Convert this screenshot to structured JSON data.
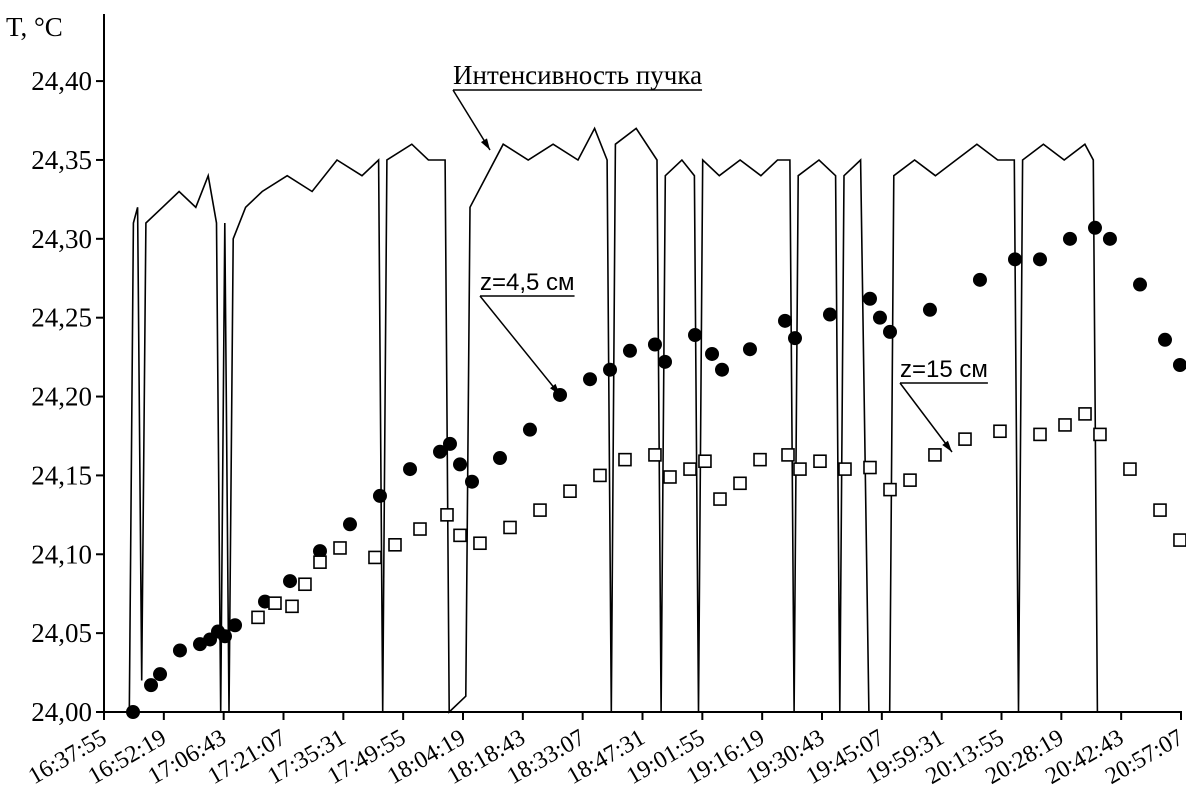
{
  "chart_data": {
    "type": "line_scatter",
    "y_label": "T, °C",
    "ylim": [
      24.0,
      24.44
    ],
    "yticks": [
      {
        "value": 24.0,
        "label": "24,00"
      },
      {
        "value": 24.05,
        "label": "24,05"
      },
      {
        "value": 24.1,
        "label": "24,10"
      },
      {
        "value": 24.15,
        "label": "24,15"
      },
      {
        "value": 24.2,
        "label": "24,20"
      },
      {
        "value": 24.25,
        "label": "24,25"
      },
      {
        "value": 24.3,
        "label": "24,30"
      },
      {
        "value": 24.35,
        "label": "24,35"
      },
      {
        "value": 24.4,
        "label": "24,40"
      }
    ],
    "xlim": [
      "16:37:55",
      "20:57:07"
    ],
    "xticks": [
      "16:37:55",
      "16:52:19",
      "17:06:43",
      "17:21:07",
      "17:35:31",
      "17:49:55",
      "18:04:19",
      "18:18:43",
      "18:33:07",
      "18:47:31",
      "19:01:55",
      "19:16:19",
      "19:30:43",
      "19:45:07",
      "19:59:31",
      "20:13:55",
      "20:28:19",
      "20:42:43",
      "20:57:07"
    ],
    "series": [
      {
        "name": "Интенсивность пучка",
        "color": "#000000",
        "style": "line",
        "x": [
          "16:44:00",
          "16:45:00",
          "16:46:00",
          "16:47:00",
          "16:48:00",
          "16:52:00",
          "16:56:00",
          "17:00:00",
          "17:03:00",
          "17:05:00",
          "17:06:00",
          "17:07:00",
          "17:08:00",
          "17:09:00",
          "17:12:00",
          "17:16:00",
          "17:22:00",
          "17:28:00",
          "17:34:00",
          "17:40:00",
          "17:44:00",
          "17:45:00",
          "17:46:00",
          "17:52:00",
          "17:56:00",
          "18:00:00",
          "18:01:00",
          "18:05:00",
          "18:06:00",
          "18:10:00",
          "18:14:00",
          "18:20:00",
          "18:26:00",
          "18:32:00",
          "18:36:00",
          "18:39:00",
          "18:40:00",
          "18:41:00",
          "18:46:00",
          "18:51:00",
          "18:52:00",
          "18:53:00",
          "18:57:00",
          "19:00:00",
          "19:01:00",
          "19:02:00",
          "19:06:00",
          "19:11:00",
          "19:16:00",
          "19:20:00",
          "19:23:00",
          "19:24:00",
          "19:25:00",
          "19:30:00",
          "19:34:00",
          "19:35:00",
          "19:36:00",
          "19:40:00",
          "19:42:00",
          "19:47:00",
          "19:48:00",
          "19:53:00",
          "19:58:00",
          "20:03:00",
          "20:08:00",
          "20:13:00",
          "20:17:00",
          "20:18:00",
          "20:19:00",
          "20:24:00",
          "20:29:00",
          "20:34:00",
          "20:36:00",
          "20:37:00"
        ],
        "values": [
          24.0,
          24.31,
          24.32,
          24.02,
          24.31,
          24.32,
          24.33,
          24.32,
          24.34,
          24.31,
          24.0,
          24.31,
          24.0,
          24.3,
          24.32,
          24.33,
          24.34,
          24.33,
          24.35,
          24.34,
          24.35,
          24.0,
          24.35,
          24.36,
          24.35,
          24.35,
          24.0,
          24.01,
          24.32,
          24.34,
          24.36,
          24.35,
          24.36,
          24.35,
          24.37,
          24.35,
          24.0,
          24.36,
          24.37,
          24.35,
          24.0,
          24.34,
          24.35,
          24.34,
          24.0,
          24.35,
          24.34,
          24.35,
          24.34,
          24.35,
          24.35,
          24.0,
          24.34,
          24.35,
          24.34,
          24.0,
          24.34,
          24.35,
          24.0,
          24.0,
          24.34,
          24.35,
          24.34,
          24.35,
          24.36,
          24.35,
          24.35,
          24.0,
          24.35,
          24.36,
          24.35,
          24.36,
          24.35,
          24.0
        ]
      },
      {
        "name": "z=4,5 см",
        "color": "#000000",
        "style": "circle",
        "x": [
          "16:44:54",
          "16:49:14",
          "16:51:24",
          "16:56:12",
          "17:01:01",
          "17:03:26",
          "17:05:21",
          "17:07:02",
          "17:09:27",
          "17:16:40",
          "17:22:41",
          "17:29:54",
          "17:37:07",
          "17:44:20",
          "17:51:34",
          "17:58:47",
          "18:01:11",
          "18:03:36",
          "18:06:29",
          "18:13:13",
          "18:20:26",
          "18:27:40",
          "18:34:53",
          "18:39:42",
          "18:44:30",
          "18:50:31",
          "18:52:56",
          "19:00:09",
          "19:04:15",
          "19:06:39",
          "19:13:23",
          "19:21:49",
          "19:24:13",
          "19:32:38",
          "19:42:16",
          "19:44:40",
          "19:47:05",
          "19:56:42",
          "20:08:44",
          "20:17:10",
          "20:23:11",
          "20:30:24",
          "20:36:25",
          "20:40:01",
          "20:47:15",
          "20:53:16",
          "20:56:52"
        ],
        "values": [
          24.0,
          24.017,
          24.024,
          24.039,
          24.043,
          24.046,
          24.051,
          24.048,
          24.055,
          24.07,
          24.083,
          24.102,
          24.119,
          24.137,
          24.154,
          24.165,
          24.17,
          24.157,
          24.146,
          24.161,
          24.179,
          24.201,
          24.211,
          24.217,
          24.229,
          24.233,
          24.222,
          24.239,
          24.227,
          24.217,
          24.23,
          24.248,
          24.237,
          24.252,
          24.262,
          24.25,
          24.241,
          24.255,
          24.274,
          24.287,
          24.287,
          24.3,
          24.307,
          24.3,
          24.271,
          24.236,
          24.22
        ]
      },
      {
        "name": "z=15 см",
        "color": "#000000",
        "style": "square",
        "x": [
          "17:14:59",
          "17:19:04",
          "17:23:10",
          "17:26:17",
          "17:29:54",
          "17:34:43",
          "17:43:08",
          "17:47:57",
          "17:53:58",
          "18:00:28",
          "18:03:36",
          "18:08:24",
          "18:15:38",
          "18:22:51",
          "18:30:04",
          "18:37:17",
          "18:43:18",
          "18:50:31",
          "18:54:08",
          "18:58:57",
          "19:02:33",
          "19:06:10",
          "19:10:59",
          "19:15:48",
          "19:22:32",
          "19:25:25",
          "19:30:14",
          "19:36:15",
          "19:42:16",
          "19:47:05",
          "19:51:54",
          "19:57:54",
          "20:05:08",
          "20:13:33",
          "20:23:11",
          "20:29:12",
          "20:34:01",
          "20:37:37",
          "20:44:50",
          "20:52:04",
          "20:56:52"
        ],
        "values": [
          24.06,
          24.069,
          24.067,
          24.081,
          24.095,
          24.104,
          24.098,
          24.106,
          24.116,
          24.125,
          24.112,
          24.107,
          24.117,
          24.128,
          24.14,
          24.15,
          24.16,
          24.163,
          24.149,
          24.154,
          24.159,
          24.135,
          24.145,
          24.16,
          24.163,
          24.154,
          24.159,
          24.154,
          24.155,
          24.141,
          24.147,
          24.163,
          24.173,
          24.178,
          24.176,
          24.182,
          24.189,
          24.176,
          24.154,
          24.128,
          24.109
        ]
      }
    ]
  }
}
